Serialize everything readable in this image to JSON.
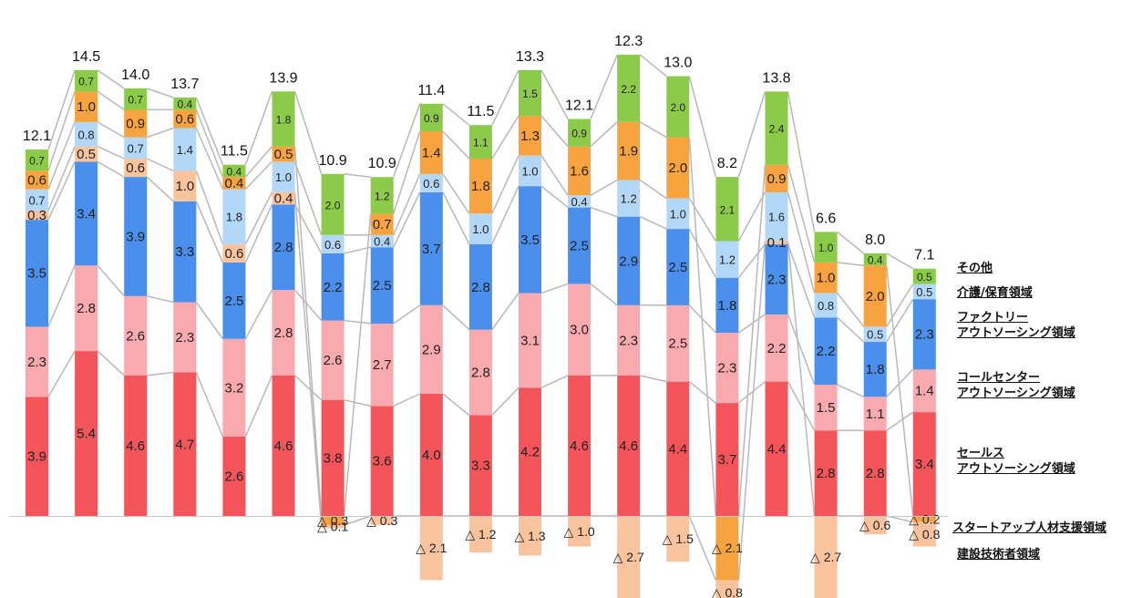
{
  "chart_data": {
    "type": "bar",
    "stacked": true,
    "colors": {
      "sales": "#f4555a",
      "callcenter": "#f9aaaf",
      "factory": "#4a8fec",
      "construction": "#f9c39e",
      "care": "#b3d7f6",
      "startup": "#f7a340",
      "other": "#8ccb4a",
      "connector": "#b8b8b8"
    },
    "series": [
      {
        "key": "sales",
        "legend_lines": [
          "セールス",
          "アウトソーシング領域"
        ],
        "values": [
          "3.9",
          "5.4",
          "4.6",
          "4.7",
          "2.6",
          "4.6",
          "3.8",
          "3.6",
          "4.0",
          "3.3",
          "4.2",
          "4.6",
          "4.6",
          "4.4",
          "3.7",
          "4.4",
          "2.8",
          "2.8",
          "3.4"
        ]
      },
      {
        "key": "callcenter",
        "legend_lines": [
          "コールセンター",
          "アウトソーシング領域"
        ],
        "values": [
          "2.3",
          "2.8",
          "2.6",
          "2.3",
          "3.2",
          "2.8",
          "2.6",
          "2.7",
          "2.9",
          "2.8",
          "3.1",
          "3.0",
          "2.3",
          "2.5",
          "2.3",
          "2.2",
          "1.5",
          "1.1",
          "1.4"
        ]
      },
      {
        "key": "factory",
        "legend_lines": [
          "ファクトリー",
          "アウトソーシング領域"
        ],
        "values": [
          "3.5",
          "3.4",
          "3.9",
          "3.3",
          "2.5",
          "2.8",
          "2.2",
          "2.5",
          "3.7",
          "2.8",
          "3.5",
          "2.5",
          "2.9",
          "2.5",
          "1.8",
          "2.3",
          "2.2",
          "1.8",
          "2.3"
        ]
      },
      {
        "key": "construction",
        "legend_lines": [
          "建設技術者領域"
        ],
        "values": [
          "0.3",
          "0.5",
          "0.6",
          "1.0",
          "0.6",
          "0.4",
          "△ 0.1",
          "△ 0.3",
          "△ 2.1",
          "△ 1.2",
          "△ 1.3",
          "△ 1.0",
          "△ 2.7",
          "△ 1.5",
          "△ 0.8",
          "0.1",
          "△ 2.7",
          "△ 0.6",
          "△ 0.8"
        ]
      },
      {
        "key": "care",
        "legend_lines": [
          "介護/保育領域"
        ],
        "values": [
          "0.7",
          "0.8",
          "0.7",
          "1.4",
          "1.8",
          "1.0",
          "0.6",
          "0.4",
          "0.6",
          "1.0",
          "1.0",
          "0.4",
          "1.2",
          "1.0",
          "1.2",
          "1.6",
          "0.8",
          "0.5",
          "0.5"
        ]
      },
      {
        "key": "startup",
        "legend_lines": [
          "スタートアップ人材支援領域"
        ],
        "values": [
          "0.6",
          "1.0",
          "0.9",
          "0.6",
          "0.4",
          "0.5",
          "△ 0.3",
          "0.7",
          "1.4",
          "1.8",
          "1.3",
          "1.6",
          "1.9",
          "2.0",
          "△ 2.1",
          "0.9",
          "1.0",
          "2.0",
          "△ 0.2"
        ]
      },
      {
        "key": "other",
        "legend_lines": [
          "その他"
        ],
        "values": [
          "0.7",
          "0.7",
          "0.7",
          "0.4",
          "0.4",
          "1.8",
          "2.0",
          "1.2",
          "0.9",
          "1.1",
          "1.5",
          "0.9",
          "2.2",
          "2.0",
          "2.1",
          "2.4",
          "1.0",
          "0.4",
          "0.5"
        ]
      }
    ],
    "totals": [
      "12.1",
      "14.5",
      "14.0",
      "13.7",
      "11.5",
      "13.9",
      "10.9",
      "10.9",
      "11.4",
      "11.5",
      "13.3",
      "12.1",
      "12.3",
      "13.0",
      "8.2",
      "13.8",
      "6.6",
      "8.0",
      "7.1"
    ],
    "legend_order": [
      "other",
      "care",
      "factory",
      "callcenter",
      "sales",
      "startup",
      "construction"
    ]
  }
}
